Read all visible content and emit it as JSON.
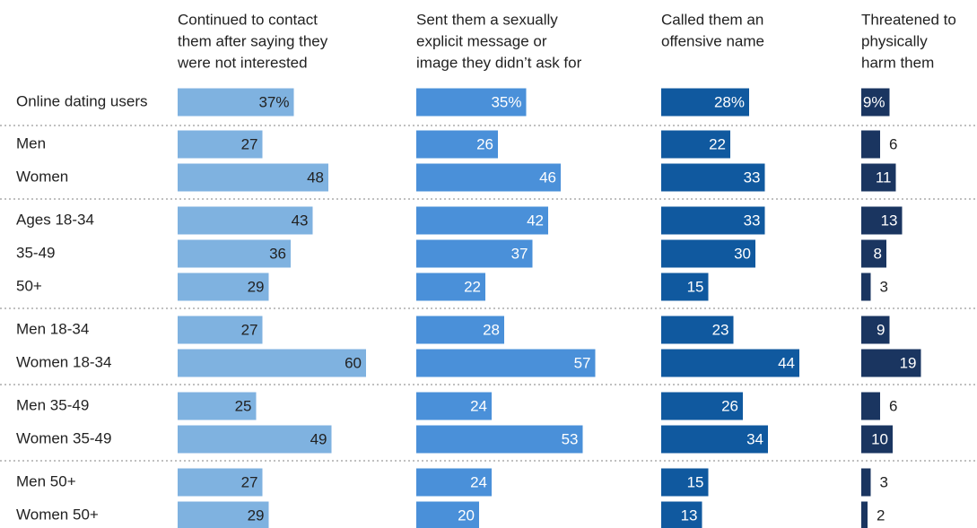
{
  "chart_data": {
    "type": "bar",
    "orientation": "horizontal",
    "layout": "small-multiples",
    "categories": [
      "Online dating users",
      "Men",
      "Women",
      "Ages 18-34",
      "35-49",
      "50+",
      "Men 18-34",
      "Women 18-34",
      "Men 35-49",
      "Women 35-49",
      "Men 50+",
      "Women 50+"
    ],
    "groups": [
      [
        0
      ],
      [
        1,
        2
      ],
      [
        3,
        4,
        5
      ],
      [
        6,
        7
      ],
      [
        8,
        9
      ],
      [
        10,
        11
      ]
    ],
    "series": [
      {
        "name": "Continued to contact them after saying they were not interested",
        "header_lines": [
          "Continued to contact",
          "them after saying they",
          "were not interested"
        ],
        "color": "#7fb2e0",
        "label_color": "#222222",
        "values": [
          37,
          27,
          48,
          43,
          36,
          29,
          27,
          60,
          25,
          49,
          27,
          29
        ]
      },
      {
        "name": "Sent them a sexually explicit message or image they didn't ask for",
        "header_lines": [
          "Sent them a sexually",
          "explicit message or",
          "image they didn’t ask for"
        ],
        "color": "#4a90d9",
        "label_color": "#ffffff",
        "values": [
          35,
          26,
          46,
          42,
          37,
          22,
          28,
          57,
          24,
          53,
          24,
          20
        ]
      },
      {
        "name": "Called them an offensive name",
        "header_lines": [
          "Called them an",
          "offensive name"
        ],
        "color": "#10599f",
        "label_color": "#ffffff",
        "values": [
          28,
          22,
          33,
          33,
          30,
          15,
          23,
          44,
          26,
          34,
          15,
          13
        ]
      },
      {
        "name": "Threatened to physically harm them",
        "header_lines": [
          "Threatened to",
          "physically",
          "harm them"
        ],
        "color": "#1a3560",
        "label_color": "#ffffff",
        "values": [
          9,
          6,
          11,
          13,
          8,
          3,
          9,
          19,
          6,
          10,
          3,
          2
        ]
      }
    ],
    "first_row_value_suffix": "%",
    "xlim": [
      0,
      100
    ],
    "grid": false,
    "separators": "dotted"
  }
}
